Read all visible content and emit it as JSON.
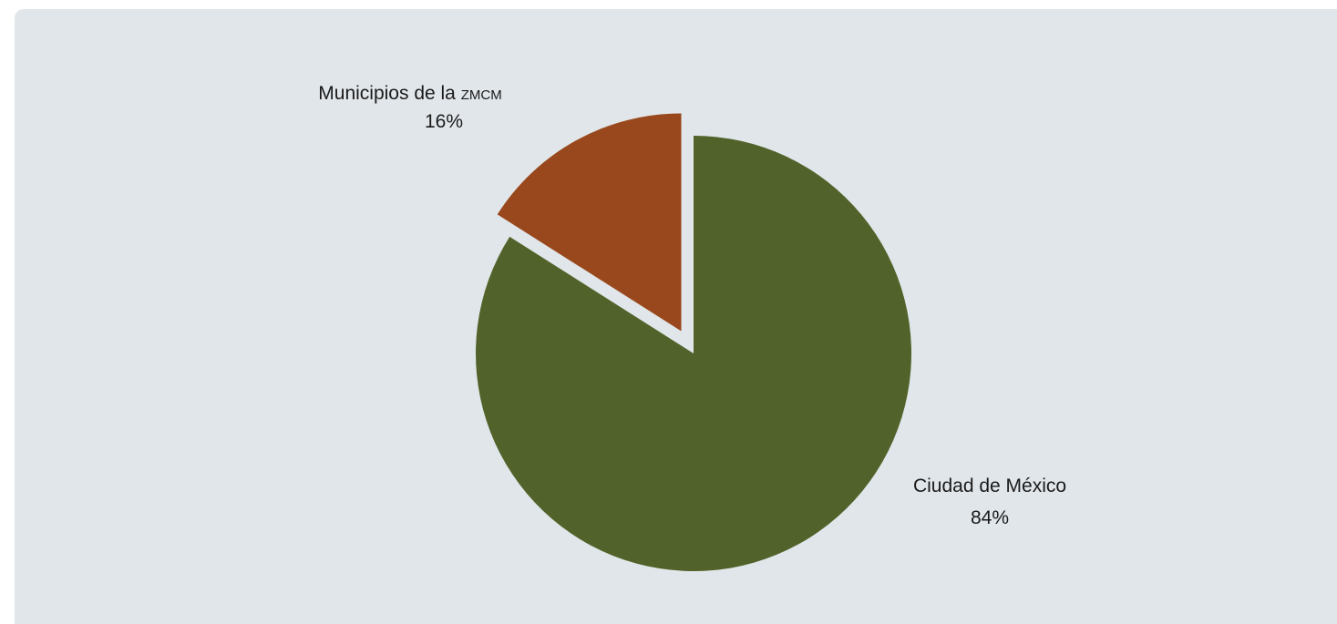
{
  "chart_data": {
    "type": "pie",
    "title": "",
    "slices": [
      {
        "label": "Ciudad de México",
        "value": 84,
        "value_label": "84%",
        "color": "#51632a",
        "exploded": false
      },
      {
        "label_main": "Municipios de la ",
        "label_suffix": "ZMCM",
        "value": 16,
        "value_label": "16%",
        "color": "#98481c",
        "exploded": true
      }
    ],
    "start": "top",
    "direction": "clockwise",
    "background_color": "#e1e6ea"
  }
}
